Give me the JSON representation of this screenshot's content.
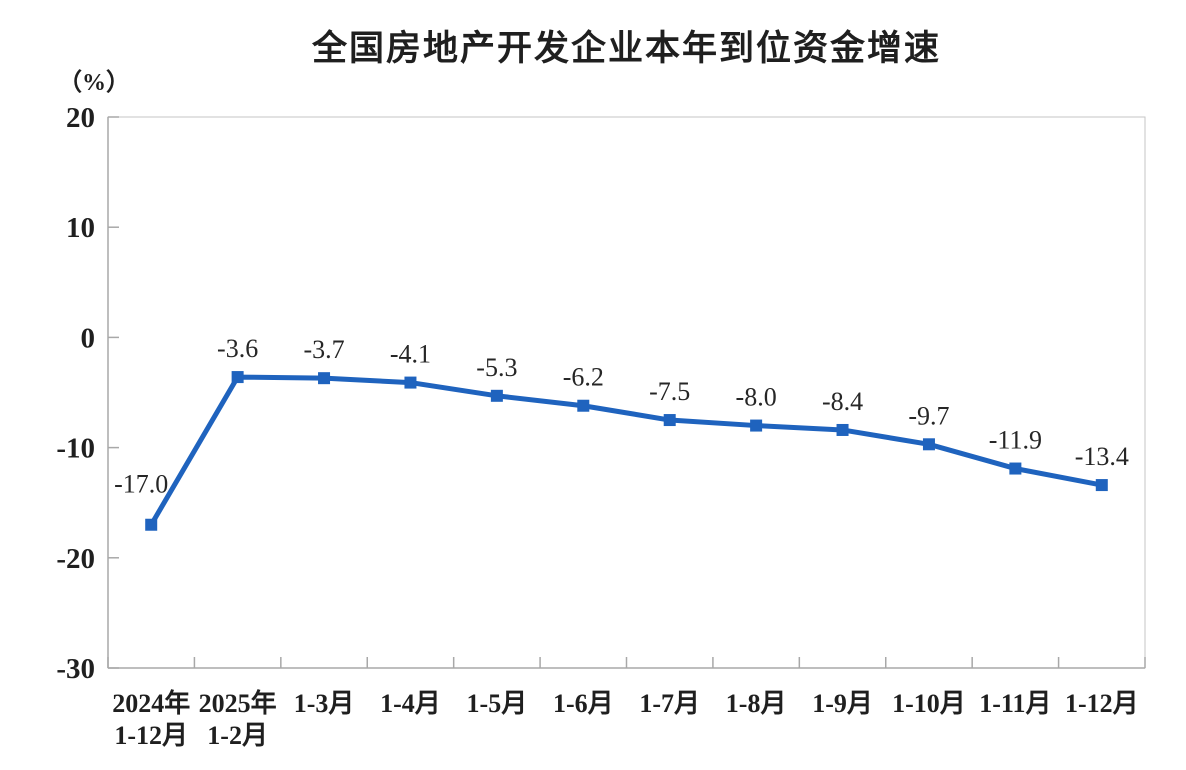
{
  "page": {
    "background": "#ffffff"
  },
  "chart_data": {
    "type": "line",
    "title": "全国房地产开发企业本年到位资金增速",
    "unit_label": "（%）",
    "categories": [
      "2024年\n1-12月",
      "2025年\n1-2月",
      "1-3月",
      "1-4月",
      "1-5月",
      "1-6月",
      "1-7月",
      "1-8月",
      "1-9月",
      "1-10月",
      "1-11月",
      "1-12月"
    ],
    "values": [
      -17.0,
      -3.6,
      -3.7,
      -4.1,
      -5.3,
      -6.2,
      -7.5,
      -8.0,
      -8.4,
      -9.7,
      -11.9,
      -13.4
    ],
    "point_labels": [
      "-17.0",
      "-3.6",
      "-3.7",
      "-4.1",
      "-5.3",
      "-6.2",
      "-7.5",
      "-8.0",
      "-8.4",
      "-9.7",
      "-11.9",
      "-13.4"
    ],
    "ylim": [
      -30,
      20
    ],
    "yticks": [
      20,
      10,
      0,
      -10,
      -20,
      -30
    ],
    "grid": false,
    "legend": "none",
    "marker_shape": "square",
    "colors": {
      "line": "#1F63BE",
      "marker": "#1F63BE",
      "axis": "#A8A8A8",
      "border": "#C6C6C6",
      "tick_text": "#1F1F1F",
      "data_label_text": "#262626"
    }
  }
}
